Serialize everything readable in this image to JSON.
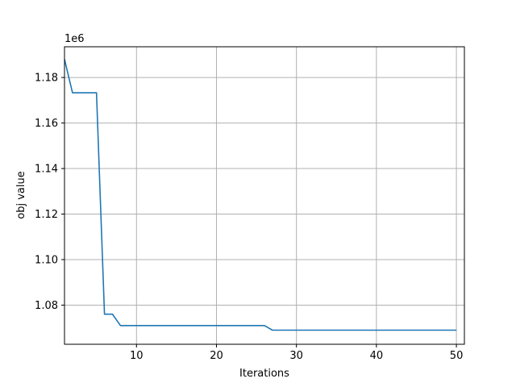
{
  "chart_data": {
    "type": "line",
    "title": "",
    "xlabel": "Iterations",
    "ylabel": "obj value",
    "y_offset_label": "1e6",
    "xlim": [
      1,
      51
    ],
    "ylim": [
      1.0628,
      1.1935
    ],
    "x_ticks": [
      10,
      20,
      30,
      40,
      50
    ],
    "x_tick_labels": [
      "10",
      "20",
      "30",
      "40",
      "50"
    ],
    "y_ticks": [
      1.08,
      1.1,
      1.12,
      1.14,
      1.16,
      1.18
    ],
    "y_tick_labels": [
      "1.08",
      "1.10",
      "1.12",
      "1.14",
      "1.16",
      "1.18"
    ],
    "grid": true,
    "series": [
      {
        "color": "#1f77b4",
        "x": [
          1,
          2,
          3,
          4,
          5,
          6,
          7,
          8,
          9,
          10,
          11,
          12,
          13,
          14,
          15,
          16,
          17,
          18,
          19,
          20,
          21,
          22,
          23,
          24,
          25,
          26,
          27,
          28,
          29,
          30,
          31,
          32,
          33,
          34,
          35,
          36,
          37,
          38,
          39,
          40,
          41,
          42,
          43,
          44,
          45,
          46,
          47,
          48,
          49,
          50
        ],
        "y": [
          1.188,
          1.1733,
          1.1733,
          1.1733,
          1.1733,
          1.076,
          1.076,
          1.071,
          1.071,
          1.071,
          1.071,
          1.071,
          1.071,
          1.071,
          1.071,
          1.071,
          1.071,
          1.071,
          1.071,
          1.071,
          1.071,
          1.071,
          1.071,
          1.071,
          1.071,
          1.071,
          1.069,
          1.069,
          1.069,
          1.069,
          1.069,
          1.069,
          1.069,
          1.069,
          1.069,
          1.069,
          1.069,
          1.069,
          1.069,
          1.069,
          1.069,
          1.069,
          1.069,
          1.069,
          1.069,
          1.069,
          1.069,
          1.069,
          1.069,
          1.069
        ]
      }
    ]
  }
}
